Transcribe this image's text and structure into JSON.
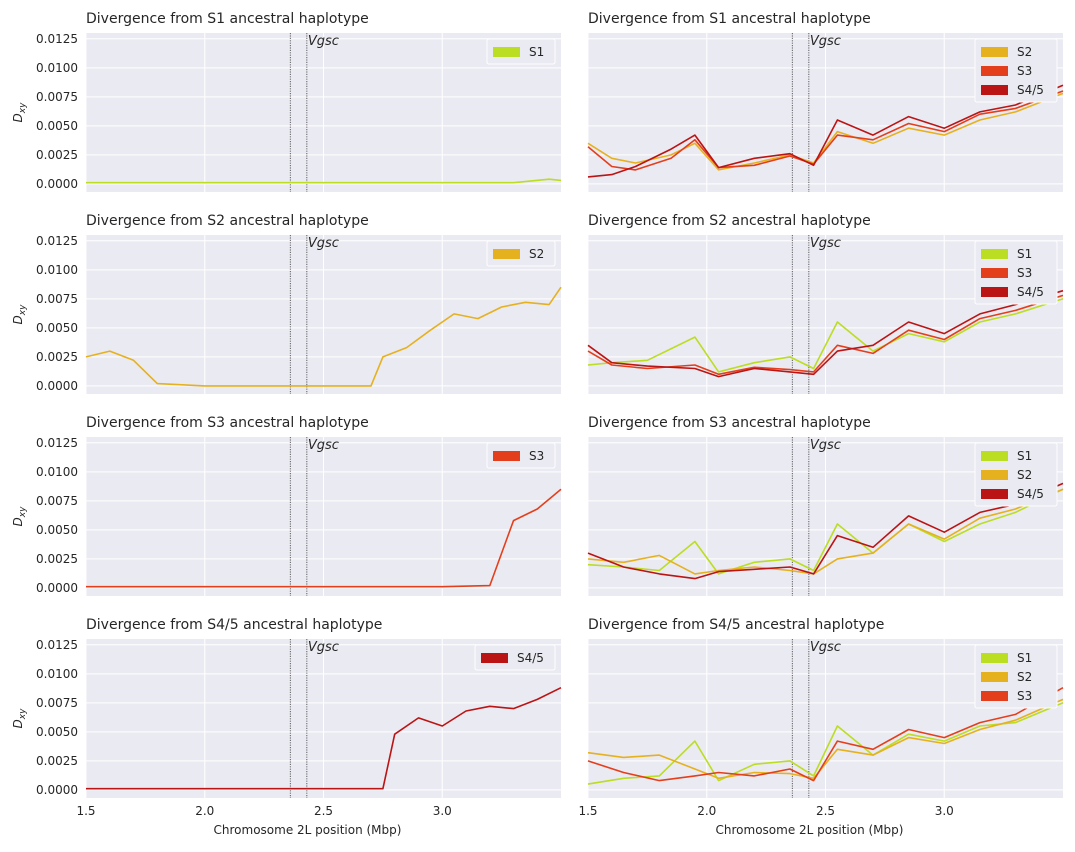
{
  "figure": {
    "xlabel": "Chromosome 2L position (Mbp)",
    "ylabel": "D_xy"
  },
  "colors": {
    "S1": "#bbdd22",
    "S2": "#e6b11f",
    "S3": "#e43f1c",
    "S4/5": "#bb1414",
    "axes_bg": "#eaeaf2",
    "grid": "#ffffff",
    "text": "#262626"
  },
  "chart_data": [
    {
      "type": "line",
      "title": "Divergence from S1 ancestral haplotype",
      "xlabel": "",
      "ylabel": "Dxy",
      "xlim": [
        1.5,
        3.5
      ],
      "ylim": [
        -0.0007,
        0.013
      ],
      "x_ticks": [
        "1.5",
        "2.0",
        "2.5",
        "3.0"
      ],
      "y_ticks": [
        "0.0000",
        "0.0025",
        "0.0050",
        "0.0075",
        "0.0100",
        "0.0125"
      ],
      "annotation": {
        "text": "Vgsc",
        "x_lines": [
          2.36,
          2.43
        ]
      },
      "legend": [
        "S1"
      ],
      "legend_position": "top-right",
      "series": [
        {
          "name": "S1",
          "x": [
            1.5,
            2.0,
            2.5,
            3.0,
            3.3,
            3.45,
            3.5
          ],
          "values": [
            0.0001,
            0.0001,
            0.0001,
            0.0001,
            0.0001,
            0.0004,
            0.0003
          ]
        }
      ]
    },
    {
      "type": "line",
      "title": "Divergence from S1 ancestral haplotype",
      "xlabel": "",
      "ylabel": "",
      "xlim": [
        1.5,
        3.5
      ],
      "ylim": [
        -0.0007,
        0.013
      ],
      "x_ticks": [
        "1.5",
        "2.0",
        "2.5",
        "3.0"
      ],
      "y_ticks": [],
      "annotation": {
        "text": "Vgsc",
        "x_lines": [
          2.36,
          2.43
        ]
      },
      "legend": [
        "S2",
        "S3",
        "S4/5"
      ],
      "legend_position": "top-right",
      "series": [
        {
          "name": "S2",
          "x": [
            1.5,
            1.6,
            1.7,
            1.85,
            1.95,
            2.05,
            2.2,
            2.35,
            2.45,
            2.55,
            2.7,
            2.85,
            3.0,
            3.15,
            3.3,
            3.5
          ],
          "values": [
            0.0035,
            0.0022,
            0.0018,
            0.0025,
            0.0035,
            0.0012,
            0.0018,
            0.0025,
            0.0018,
            0.0045,
            0.0035,
            0.0048,
            0.0042,
            0.0055,
            0.0062,
            0.0078
          ]
        },
        {
          "name": "S3",
          "x": [
            1.5,
            1.6,
            1.7,
            1.85,
            1.95,
            2.05,
            2.2,
            2.35,
            2.45,
            2.55,
            2.7,
            2.85,
            3.0,
            3.15,
            3.3,
            3.5
          ],
          "values": [
            0.0032,
            0.0015,
            0.0012,
            0.0022,
            0.0038,
            0.0014,
            0.0016,
            0.0024,
            0.0017,
            0.0042,
            0.0038,
            0.0052,
            0.0045,
            0.006,
            0.0065,
            0.008
          ]
        },
        {
          "name": "S4/5",
          "x": [
            1.5,
            1.6,
            1.7,
            1.85,
            1.95,
            2.05,
            2.2,
            2.35,
            2.45,
            2.55,
            2.7,
            2.85,
            3.0,
            3.15,
            3.3,
            3.5
          ],
          "values": [
            0.0006,
            0.0008,
            0.0015,
            0.003,
            0.0042,
            0.0014,
            0.0022,
            0.0026,
            0.0016,
            0.0055,
            0.0042,
            0.0058,
            0.0048,
            0.0062,
            0.0068,
            0.0085
          ]
        }
      ]
    },
    {
      "type": "line",
      "title": "Divergence from S2 ancestral haplotype",
      "xlabel": "",
      "ylabel": "Dxy",
      "xlim": [
        1.5,
        3.5
      ],
      "ylim": [
        -0.0007,
        0.013
      ],
      "x_ticks": [
        "1.5",
        "2.0",
        "2.5",
        "3.0"
      ],
      "y_ticks": [
        "0.0000",
        "0.0025",
        "0.0050",
        "0.0075",
        "0.0100",
        "0.0125"
      ],
      "annotation": {
        "text": "Vgsc",
        "x_lines": [
          2.36,
          2.43
        ]
      },
      "legend": [
        "S2"
      ],
      "legend_position": "top-right",
      "series": [
        {
          "name": "S2",
          "x": [
            1.5,
            1.6,
            1.7,
            1.8,
            2.0,
            2.5,
            2.7,
            2.75,
            2.85,
            2.95,
            3.05,
            3.15,
            3.25,
            3.35,
            3.45,
            3.5
          ],
          "values": [
            0.0025,
            0.003,
            0.0022,
            0.0002,
            0.0,
            0.0,
            0.0,
            0.0025,
            0.0033,
            0.0048,
            0.0062,
            0.0058,
            0.0068,
            0.0072,
            0.007,
            0.0085
          ]
        }
      ]
    },
    {
      "type": "line",
      "title": "Divergence from S2 ancestral haplotype",
      "xlabel": "",
      "ylabel": "",
      "xlim": [
        1.5,
        3.5
      ],
      "ylim": [
        -0.0007,
        0.013
      ],
      "x_ticks": [
        "1.5",
        "2.0",
        "2.5",
        "3.0"
      ],
      "y_ticks": [],
      "annotation": {
        "text": "Vgsc",
        "x_lines": [
          2.36,
          2.43
        ]
      },
      "legend": [
        "S1",
        "S3",
        "S4/5"
      ],
      "legend_position": "top-right",
      "series": [
        {
          "name": "S1",
          "x": [
            1.5,
            1.6,
            1.75,
            1.95,
            2.05,
            2.2,
            2.35,
            2.45,
            2.55,
            2.7,
            2.85,
            3.0,
            3.15,
            3.3,
            3.5
          ],
          "values": [
            0.0018,
            0.002,
            0.0022,
            0.0042,
            0.0012,
            0.002,
            0.0025,
            0.0015,
            0.0055,
            0.003,
            0.0045,
            0.0038,
            0.0055,
            0.0062,
            0.0075
          ]
        },
        {
          "name": "S3",
          "x": [
            1.5,
            1.6,
            1.75,
            1.95,
            2.05,
            2.2,
            2.35,
            2.45,
            2.55,
            2.7,
            2.85,
            3.0,
            3.15,
            3.3,
            3.5
          ],
          "values": [
            0.003,
            0.0018,
            0.0015,
            0.0018,
            0.001,
            0.0016,
            0.0014,
            0.0012,
            0.0035,
            0.0028,
            0.0048,
            0.004,
            0.0058,
            0.0065,
            0.0078
          ]
        },
        {
          "name": "S4/5",
          "x": [
            1.5,
            1.6,
            1.75,
            1.95,
            2.05,
            2.2,
            2.35,
            2.45,
            2.55,
            2.7,
            2.85,
            3.0,
            3.15,
            3.3,
            3.5
          ],
          "values": [
            0.0035,
            0.002,
            0.0017,
            0.0015,
            0.0008,
            0.0015,
            0.0012,
            0.001,
            0.003,
            0.0035,
            0.0055,
            0.0045,
            0.0062,
            0.007,
            0.0082
          ]
        }
      ]
    },
    {
      "type": "line",
      "title": "Divergence from S3 ancestral haplotype",
      "xlabel": "",
      "ylabel": "Dxy",
      "xlim": [
        1.5,
        3.5
      ],
      "ylim": [
        -0.0007,
        0.013
      ],
      "x_ticks": [
        "1.5",
        "2.0",
        "2.5",
        "3.0"
      ],
      "y_ticks": [
        "0.0000",
        "0.0025",
        "0.0050",
        "0.0075",
        "0.0100",
        "0.0125"
      ],
      "annotation": {
        "text": "Vgsc",
        "x_lines": [
          2.36,
          2.43
        ]
      },
      "legend": [
        "S3"
      ],
      "legend_position": "top-right",
      "series": [
        {
          "name": "S3",
          "x": [
            1.5,
            2.0,
            2.5,
            3.0,
            3.2,
            3.3,
            3.4,
            3.5
          ],
          "values": [
            0.0001,
            0.0001,
            0.0001,
            0.0001,
            0.0002,
            0.0058,
            0.0068,
            0.0085
          ]
        }
      ]
    },
    {
      "type": "line",
      "title": "Divergence from S3 ancestral haplotype",
      "xlabel": "",
      "ylabel": "",
      "xlim": [
        1.5,
        3.5
      ],
      "ylim": [
        -0.0007,
        0.013
      ],
      "x_ticks": [
        "1.5",
        "2.0",
        "2.5",
        "3.0"
      ],
      "y_ticks": [],
      "annotation": {
        "text": "Vgsc",
        "x_lines": [
          2.36,
          2.43
        ]
      },
      "legend": [
        "S1",
        "S2",
        "S4/5"
      ],
      "legend_position": "top-right",
      "series": [
        {
          "name": "S1",
          "x": [
            1.5,
            1.65,
            1.8,
            1.95,
            2.05,
            2.2,
            2.35,
            2.45,
            2.55,
            2.7,
            2.85,
            3.0,
            3.15,
            3.3,
            3.5
          ],
          "values": [
            0.002,
            0.0018,
            0.0015,
            0.004,
            0.0012,
            0.0022,
            0.0025,
            0.0015,
            0.0055,
            0.003,
            0.0055,
            0.004,
            0.0055,
            0.0065,
            0.0085
          ]
        },
        {
          "name": "S2",
          "x": [
            1.5,
            1.65,
            1.8,
            1.95,
            2.05,
            2.2,
            2.35,
            2.45,
            2.55,
            2.7,
            2.85,
            3.0,
            3.15,
            3.3,
            3.5
          ],
          "values": [
            0.0025,
            0.0022,
            0.0028,
            0.0012,
            0.0015,
            0.0018,
            0.0015,
            0.0012,
            0.0025,
            0.003,
            0.0055,
            0.0042,
            0.006,
            0.0068,
            0.0085
          ]
        },
        {
          "name": "S4/5",
          "x": [
            1.5,
            1.65,
            1.8,
            1.95,
            2.05,
            2.2,
            2.35,
            2.45,
            2.55,
            2.7,
            2.85,
            3.0,
            3.15,
            3.3,
            3.5
          ],
          "values": [
            0.003,
            0.0018,
            0.0012,
            0.0008,
            0.0014,
            0.0016,
            0.0018,
            0.0012,
            0.0045,
            0.0035,
            0.0062,
            0.0048,
            0.0065,
            0.0072,
            0.009
          ]
        }
      ]
    },
    {
      "type": "line",
      "title": "Divergence from S4/5 ancestral haplotype",
      "xlabel": "Chromosome 2L position (Mbp)",
      "ylabel": "Dxy",
      "xlim": [
        1.5,
        3.5
      ],
      "ylim": [
        -0.0007,
        0.013
      ],
      "x_ticks": [
        "1.5",
        "2.0",
        "2.5",
        "3.0"
      ],
      "y_ticks": [
        "0.0000",
        "0.0025",
        "0.0050",
        "0.0075",
        "0.0100",
        "0.0125"
      ],
      "annotation": {
        "text": "Vgsc",
        "x_lines": [
          2.36,
          2.43
        ]
      },
      "legend": [
        "S4/5"
      ],
      "legend_position": "top-right",
      "series": [
        {
          "name": "S4/5",
          "x": [
            1.5,
            2.0,
            2.5,
            2.75,
            2.8,
            2.9,
            3.0,
            3.1,
            3.2,
            3.3,
            3.4,
            3.5
          ],
          "values": [
            0.0001,
            0.0001,
            0.0001,
            0.0001,
            0.0048,
            0.0062,
            0.0055,
            0.0068,
            0.0072,
            0.007,
            0.0078,
            0.0088
          ]
        }
      ]
    },
    {
      "type": "line",
      "title": "Divergence from S4/5 ancestral haplotype",
      "xlabel": "Chromosome 2L position (Mbp)",
      "ylabel": "",
      "xlim": [
        1.5,
        3.5
      ],
      "ylim": [
        -0.0007,
        0.013
      ],
      "x_ticks": [
        "1.5",
        "2.0",
        "2.5",
        "3.0"
      ],
      "y_ticks": [],
      "annotation": {
        "text": "Vgsc",
        "x_lines": [
          2.36,
          2.43
        ]
      },
      "legend": [
        "S1",
        "S2",
        "S3"
      ],
      "legend_position": "top-right",
      "series": [
        {
          "name": "S1",
          "x": [
            1.5,
            1.65,
            1.8,
            1.95,
            2.05,
            2.2,
            2.35,
            2.45,
            2.55,
            2.7,
            2.85,
            3.0,
            3.15,
            3.3,
            3.5
          ],
          "values": [
            0.0005,
            0.001,
            0.0012,
            0.0042,
            0.0008,
            0.0022,
            0.0025,
            0.0012,
            0.0055,
            0.003,
            0.0048,
            0.0042,
            0.0055,
            0.0058,
            0.0075
          ]
        },
        {
          "name": "S2",
          "x": [
            1.5,
            1.65,
            1.8,
            1.95,
            2.05,
            2.2,
            2.35,
            2.45,
            2.55,
            2.7,
            2.85,
            3.0,
            3.15,
            3.3,
            3.5
          ],
          "values": [
            0.0032,
            0.0028,
            0.003,
            0.0018,
            0.001,
            0.0015,
            0.0014,
            0.001,
            0.0035,
            0.003,
            0.0045,
            0.004,
            0.0052,
            0.006,
            0.0078
          ]
        },
        {
          "name": "S3",
          "x": [
            1.5,
            1.65,
            1.8,
            1.95,
            2.05,
            2.2,
            2.35,
            2.45,
            2.55,
            2.7,
            2.85,
            3.0,
            3.15,
            3.3,
            3.5
          ],
          "values": [
            0.0025,
            0.0015,
            0.0008,
            0.0012,
            0.0015,
            0.0012,
            0.0018,
            0.0008,
            0.0042,
            0.0035,
            0.0052,
            0.0045,
            0.0058,
            0.0065,
            0.0088
          ]
        }
      ]
    }
  ]
}
